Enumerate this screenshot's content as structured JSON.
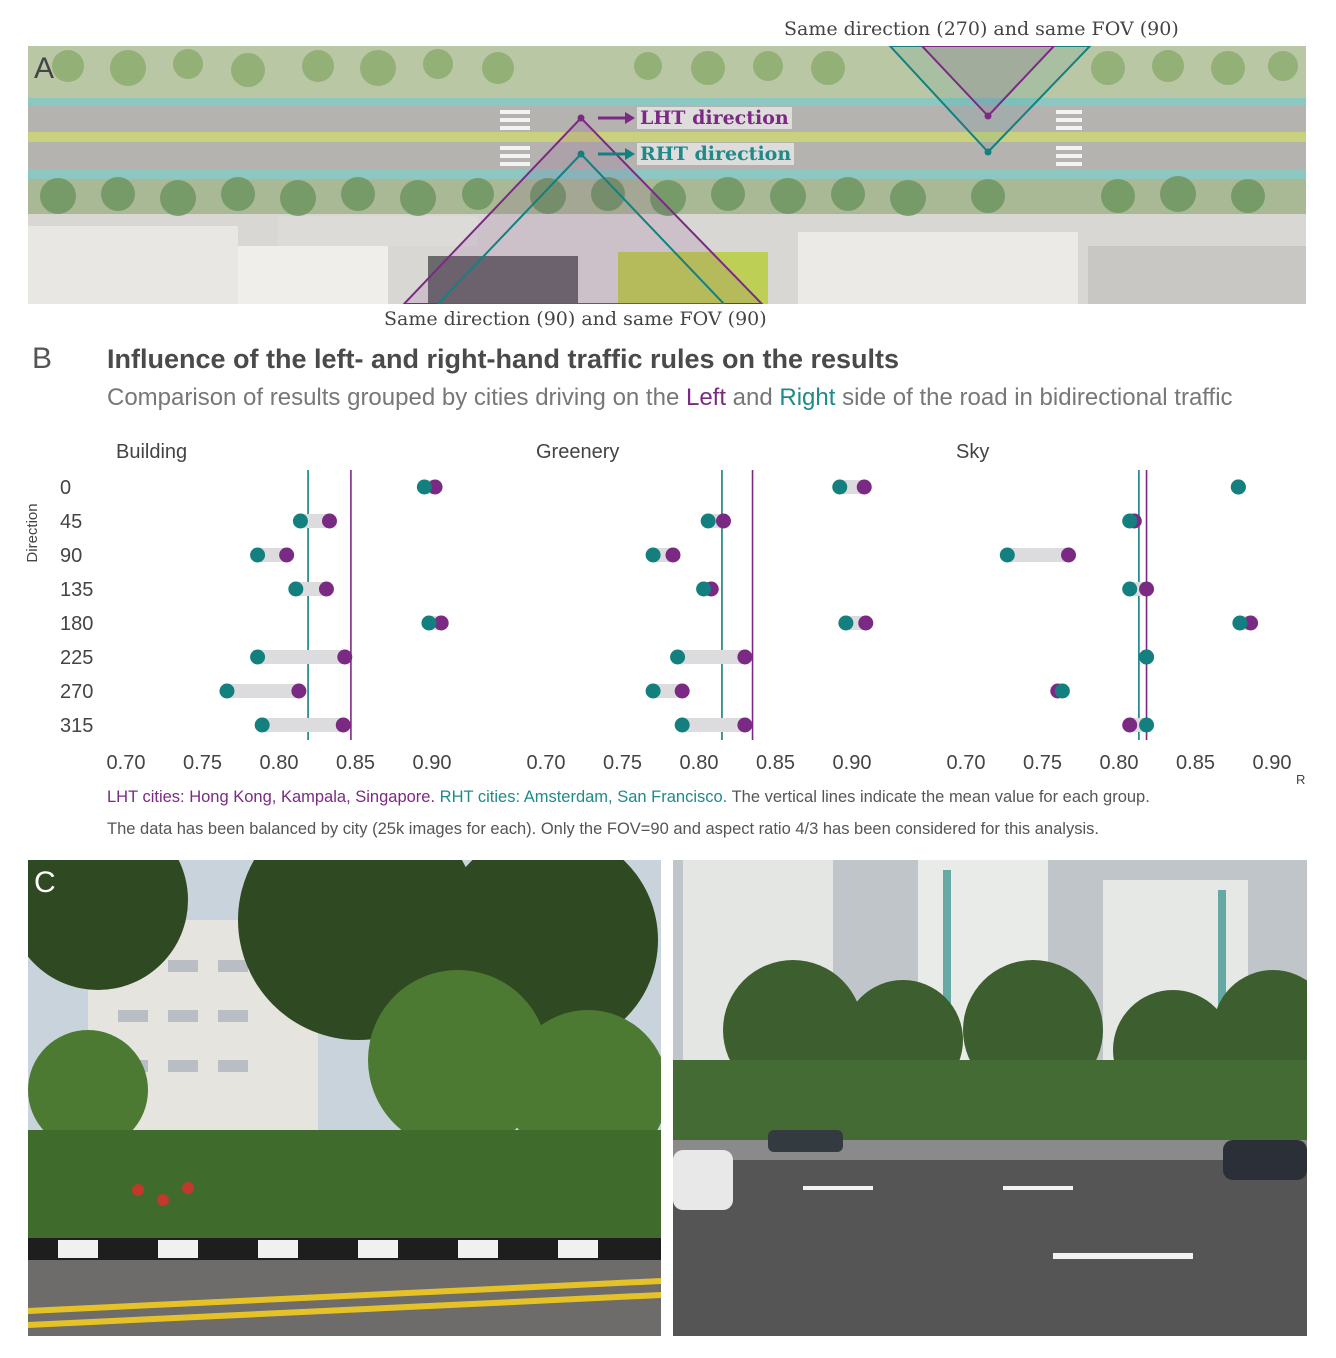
{
  "panels": {
    "a": "A",
    "b": "B",
    "c": "C"
  },
  "panel_a": {
    "top_label": "Same direction (270) and same FOV (90)",
    "bottom_label": "Same direction (90) and same FOV (90)",
    "lht_label": "LHT direction",
    "rht_label": "RHT direction"
  },
  "panel_b": {
    "title": "Influence of the left- and right-hand traffic rules on the results",
    "subtitle_pre": "Comparison of results grouped by cities driving on the ",
    "subtitle_left": "Left",
    "subtitle_mid": " and ",
    "subtitle_right": "Right",
    "subtitle_post": " side of the road in bidirectional traffic",
    "caption_lht": "LHT cities: Hong Kong, Kampala, Singapore.",
    "caption_rht": "RHT cities: Amsterdam, San Francisco.",
    "caption_rest": "The vertical lines indicate the mean value for each group.",
    "caption2": "The data has been balanced by city (25k images for each). Only the FOV=90 and aspect ratio 4/3 has been considered for this analysis."
  },
  "colors": {
    "lht": "#7b2a83",
    "rht": "#13807f",
    "connector": "#dcdcdf"
  },
  "chart_data": {
    "type": "scatter",
    "ylabel": "Direction",
    "xlabel": "R",
    "directions": [
      "0",
      "45",
      "90",
      "135",
      "180",
      "225",
      "270",
      "315"
    ],
    "xlim": [
      0.7,
      0.9
    ],
    "xticks": [
      "0.70",
      "0.75",
      "0.80",
      "0.85",
      "0.90"
    ],
    "facets": [
      {
        "name": "Building",
        "lht": [
          0.902,
          0.833,
          0.805,
          0.831,
          0.906,
          0.843,
          0.813,
          0.842
        ],
        "rht": [
          0.895,
          0.814,
          0.786,
          0.811,
          0.898,
          0.786,
          0.766,
          0.789
        ],
        "lht_mean": 0.847,
        "rht_mean": 0.819
      },
      {
        "name": "Greenery",
        "lht": [
          0.908,
          0.816,
          0.783,
          0.808,
          0.909,
          0.83,
          0.789,
          0.83
        ],
        "rht": [
          0.892,
          0.806,
          0.77,
          0.803,
          0.896,
          0.786,
          0.77,
          0.789
        ],
        "lht_mean": 0.835,
        "rht_mean": 0.815
      },
      {
        "name": "Sky",
        "lht": [
          0.878,
          0.81,
          0.767,
          0.818,
          0.886,
          0.818,
          0.76,
          0.807
        ],
        "rht": [
          0.878,
          0.807,
          0.727,
          0.807,
          0.879,
          0.818,
          0.763,
          0.818
        ],
        "lht_mean": 0.818,
        "rht_mean": 0.813
      }
    ]
  }
}
